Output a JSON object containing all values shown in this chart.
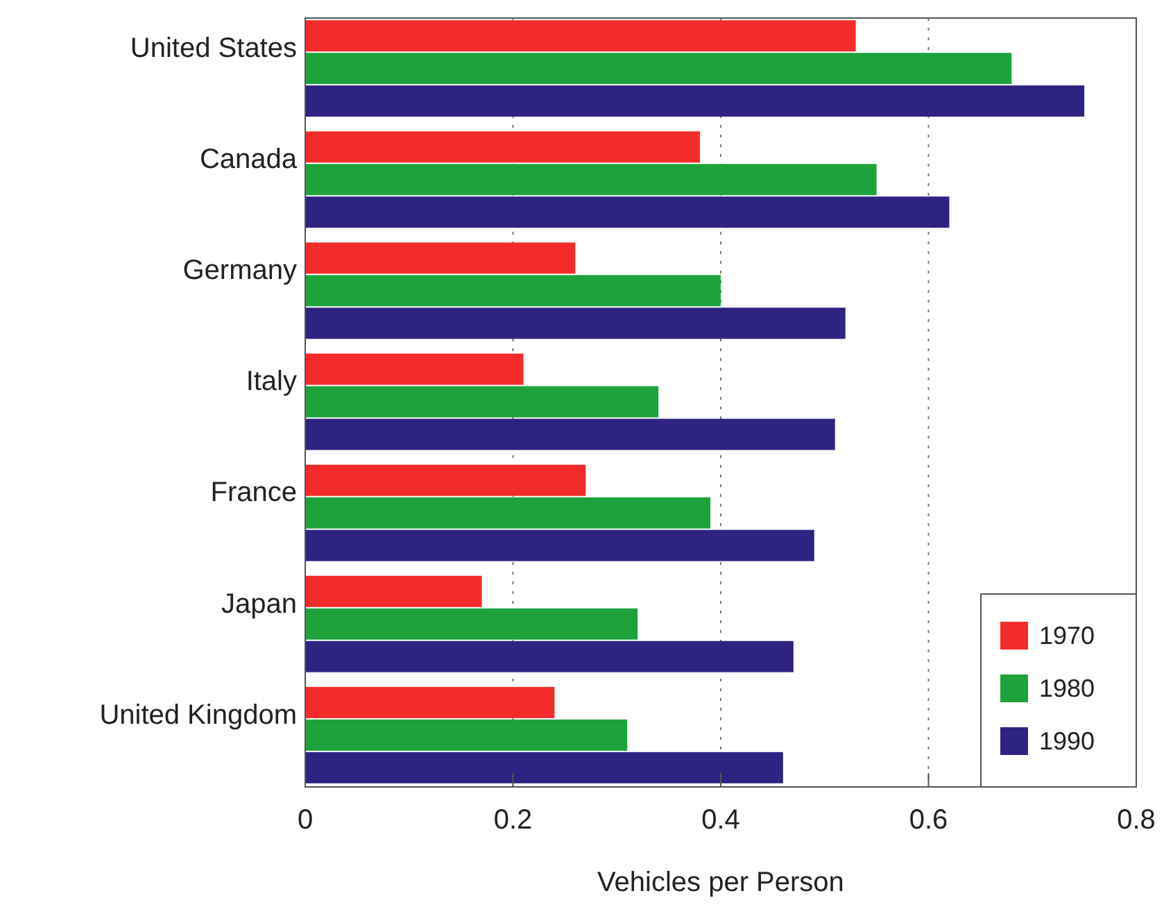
{
  "chart_data": {
    "type": "bar",
    "orientation": "horizontal",
    "xlabel": "Vehicles per Person",
    "categories": [
      "United States",
      "Canada",
      "Germany",
      "Italy",
      "France",
      "Japan",
      "United Kingdom"
    ],
    "series": [
      {
        "name": "1970",
        "color": "#f42b2b",
        "values": [
          0.53,
          0.38,
          0.26,
          0.21,
          0.27,
          0.17,
          0.24
        ]
      },
      {
        "name": "1980",
        "color": "#1ea33c",
        "values": [
          0.68,
          0.55,
          0.4,
          0.34,
          0.39,
          0.32,
          0.31
        ]
      },
      {
        "name": "1990",
        "color": "#2e2381",
        "values": [
          0.75,
          0.62,
          0.52,
          0.51,
          0.49,
          0.47,
          0.46
        ]
      }
    ],
    "xlim": [
      0,
      0.8
    ],
    "xticks": [
      0,
      0.2,
      0.4,
      0.6,
      0.8
    ],
    "grid": "x",
    "legend": "bottom right"
  }
}
